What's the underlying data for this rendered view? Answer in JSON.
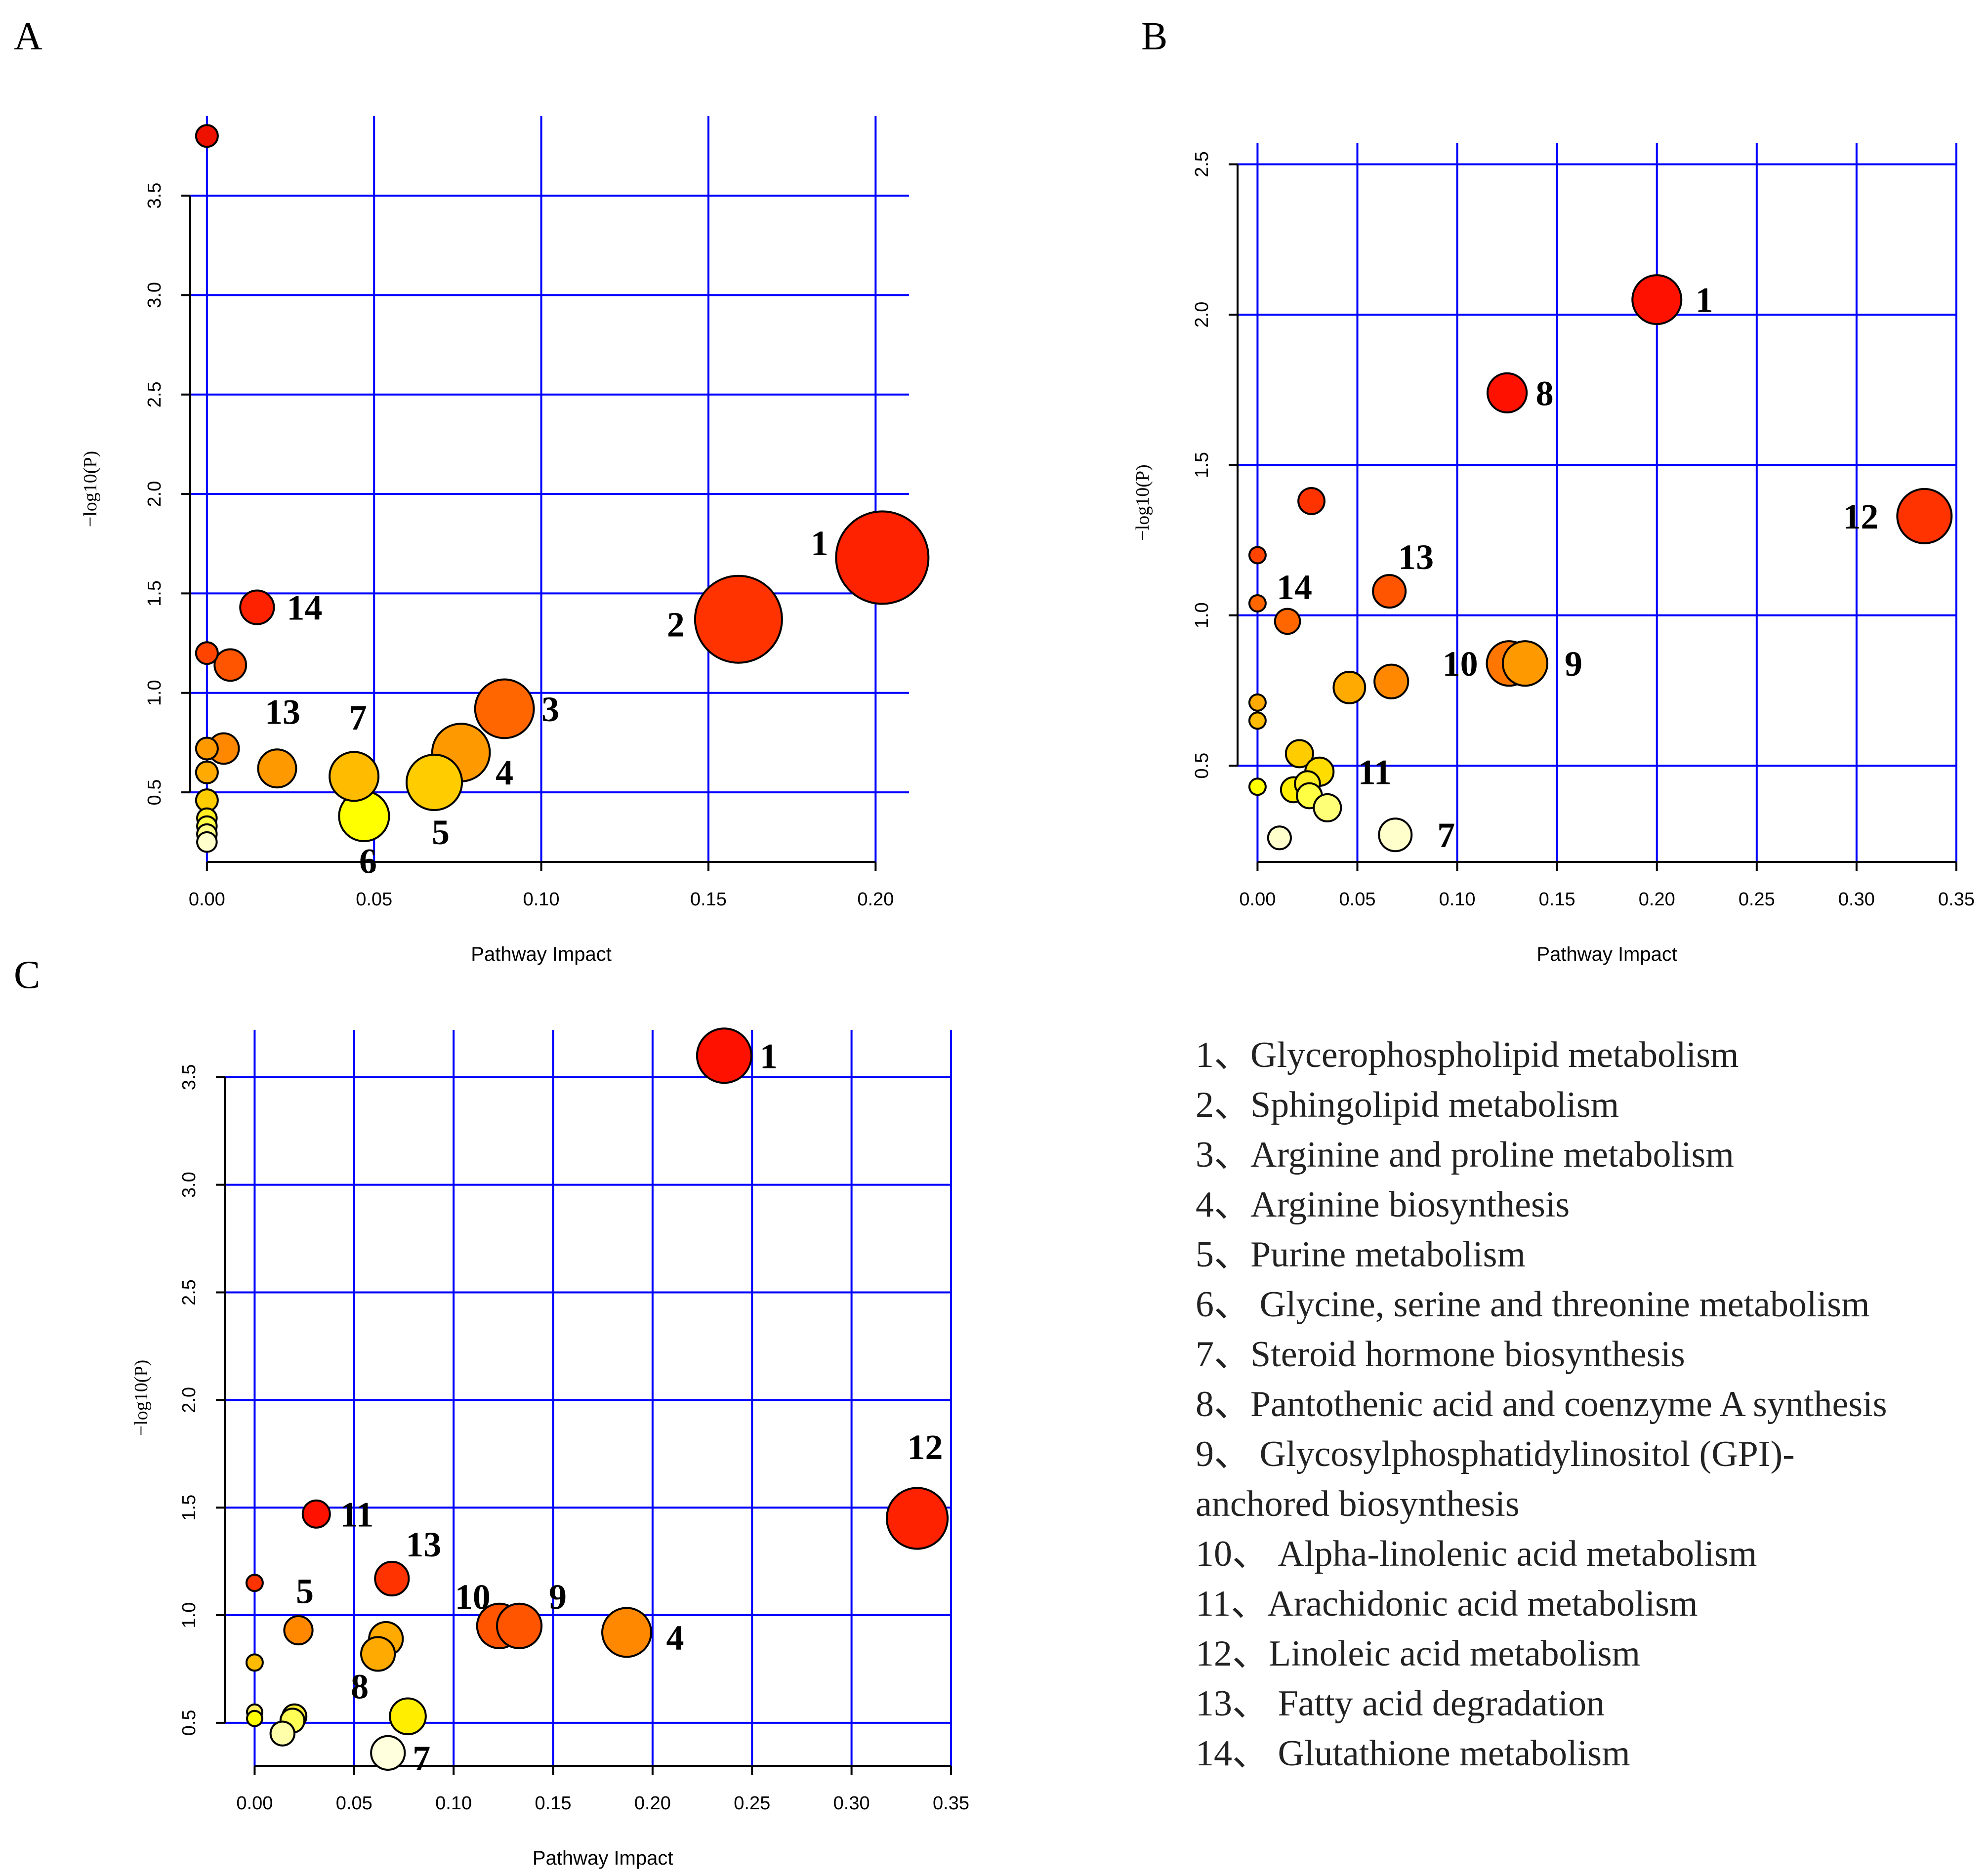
{
  "panel_letters": [
    "A",
    "B",
    "C"
  ],
  "legend": [
    "1、Glycerophospholipid metabolism",
    "2、Sphingolipid metabolism",
    "3、Arginine and proline metabolism",
    "4、Arginine biosynthesis",
    "5、Purine metabolism",
    "6、 Glycine, serine and threonine metabolism",
    "7、Steroid hormone biosynthesis",
    "8、Pantothenic acid and coenzyme A synthesis",
    "9、 Glycosylphosphatidylinositol (GPI)-",
    "anchored biosynthesis",
    "10、 Alpha-linolenic acid metabolism",
    "11、Arachidonic acid metabolism",
    "12、Linoleic acid metabolism",
    "13、 Fatty acid degradation",
    "14、 Glutathione metabolism"
  ],
  "chart_data": [
    {
      "panel": "A",
      "type": "scatter",
      "xlabel": "Pathway Impact",
      "ylabel": "−log10(P)",
      "xlim": [
        -0.005,
        0.21
      ],
      "ylim": [
        0.15,
        3.9
      ],
      "xticks": [
        0.0,
        0.05,
        0.1,
        0.15,
        0.2
      ],
      "xtick_labels": [
        "0.00",
        "0.05",
        "0.10",
        "0.15",
        "0.20"
      ],
      "yticks": [
        0.5,
        1.0,
        1.5,
        2.0,
        2.5,
        3.0,
        3.5
      ],
      "ytick_labels": [
        "0.5",
        "1.0",
        "1.5",
        "2.0",
        "2.5",
        "3.0",
        "3.5"
      ],
      "points": [
        {
          "x": 0.0,
          "y": 3.8,
          "r": 0.4,
          "color": "#ee1100"
        },
        {
          "x": 0.202,
          "y": 1.68,
          "r": 1.7,
          "color": "#ff2200",
          "label": "1"
        },
        {
          "x": 0.159,
          "y": 1.37,
          "r": 1.6,
          "color": "#ff3300",
          "label": "2"
        },
        {
          "x": 0.089,
          "y": 0.92,
          "r": 1.08,
          "color": "#ff6600",
          "label": "3"
        },
        {
          "x": 0.076,
          "y": 0.7,
          "r": 1.06,
          "color": "#ff9900",
          "label": "4"
        },
        {
          "x": 0.068,
          "y": 0.55,
          "r": 1.02,
          "color": "#ffcc00",
          "label": "5"
        },
        {
          "x": 0.047,
          "y": 0.38,
          "r": 0.92,
          "color": "#ffff00",
          "label": "6"
        },
        {
          "x": 0.044,
          "y": 0.58,
          "r": 0.9,
          "color": "#ffbb00",
          "label": "7"
        },
        {
          "x": 0.021,
          "y": 0.62,
          "r": 0.7,
          "color": "#ff9900",
          "label": "13"
        },
        {
          "x": 0.015,
          "y": 1.43,
          "r": 0.62,
          "color": "#ff2200",
          "label": "14"
        },
        {
          "x": 0.007,
          "y": 1.14,
          "r": 0.58,
          "color": "#ff5500"
        },
        {
          "x": 0.005,
          "y": 0.72,
          "r": 0.56,
          "color": "#ff8800"
        },
        {
          "x": 0.0,
          "y": 1.2,
          "r": 0.4,
          "color": "#ff4400"
        },
        {
          "x": 0.0,
          "y": 0.72,
          "r": 0.4,
          "color": "#ff9900"
        },
        {
          "x": 0.0,
          "y": 0.6,
          "r": 0.4,
          "color": "#ffaa00"
        },
        {
          "x": 0.0,
          "y": 0.46,
          "r": 0.4,
          "color": "#ffcc00"
        },
        {
          "x": 0.0,
          "y": 0.37,
          "r": 0.36,
          "color": "#ffee22"
        },
        {
          "x": 0.0,
          "y": 0.33,
          "r": 0.36,
          "color": "#ffff44"
        },
        {
          "x": 0.0,
          "y": 0.29,
          "r": 0.36,
          "color": "#ffff88"
        },
        {
          "x": 0.0,
          "y": 0.25,
          "r": 0.36,
          "color": "#ffffcc"
        }
      ]
    },
    {
      "panel": "B",
      "type": "scatter",
      "xlabel": "Pathway Impact",
      "ylabel": "−log10(P)",
      "xlim": [
        -0.01,
        0.35
      ],
      "ylim": [
        0.18,
        2.57
      ],
      "xticks": [
        0.0,
        0.05,
        0.1,
        0.15,
        0.2,
        0.25,
        0.3,
        0.35
      ],
      "xtick_labels": [
        "0.00",
        "0.05",
        "0.10",
        "0.15",
        "0.20",
        "0.25",
        "0.30",
        "0.35"
      ],
      "yticks": [
        0.5,
        1.0,
        1.5,
        2.0,
        2.5
      ],
      "ytick_labels": [
        "0.5",
        "1.0",
        "1.5",
        "2.0",
        "2.5"
      ],
      "points": [
        {
          "x": 0.2,
          "y": 2.05,
          "r": 0.9,
          "color": "#ff1100",
          "label": "1"
        },
        {
          "x": 0.125,
          "y": 1.74,
          "r": 0.72,
          "color": "#ff1100",
          "label": "8"
        },
        {
          "x": 0.334,
          "y": 1.33,
          "r": 1.0,
          "color": "#ff3300",
          "label": "12"
        },
        {
          "x": 0.027,
          "y": 1.38,
          "r": 0.48,
          "color": "#ff3300"
        },
        {
          "x": 0.066,
          "y": 1.08,
          "r": 0.6,
          "color": "#ff5500",
          "label": "13"
        },
        {
          "x": 0.015,
          "y": 0.98,
          "r": 0.46,
          "color": "#ff6600",
          "label": "14"
        },
        {
          "x": 0.0,
          "y": 1.2,
          "r": 0.3,
          "color": "#ff4400"
        },
        {
          "x": 0.0,
          "y": 1.04,
          "r": 0.3,
          "color": "#ff6600"
        },
        {
          "x": 0.126,
          "y": 0.84,
          "r": 0.82,
          "color": "#ff7700",
          "label": "10"
        },
        {
          "x": 0.134,
          "y": 0.84,
          "r": 0.82,
          "color": "#ff9900",
          "label": "9"
        },
        {
          "x": 0.067,
          "y": 0.78,
          "r": 0.62,
          "color": "#ff8800"
        },
        {
          "x": 0.046,
          "y": 0.76,
          "r": 0.58,
          "color": "#ffaa00"
        },
        {
          "x": 0.0,
          "y": 0.71,
          "r": 0.3,
          "color": "#ffaa00"
        },
        {
          "x": 0.0,
          "y": 0.65,
          "r": 0.3,
          "color": "#ffbb00"
        },
        {
          "x": 0.021,
          "y": 0.54,
          "r": 0.5,
          "color": "#ffcc00"
        },
        {
          "x": 0.031,
          "y": 0.48,
          "r": 0.52,
          "color": "#ffdd00",
          "label": "11"
        },
        {
          "x": 0.018,
          "y": 0.42,
          "r": 0.46,
          "color": "#ffee00"
        },
        {
          "x": 0.025,
          "y": 0.44,
          "r": 0.46,
          "color": "#ffee22"
        },
        {
          "x": 0.026,
          "y": 0.4,
          "r": 0.46,
          "color": "#ffff44"
        },
        {
          "x": 0.035,
          "y": 0.36,
          "r": 0.5,
          "color": "#ffff77"
        },
        {
          "x": 0.0,
          "y": 0.43,
          "r": 0.3,
          "color": "#ffff00"
        },
        {
          "x": 0.011,
          "y": 0.26,
          "r": 0.42,
          "color": "#ffffcc"
        },
        {
          "x": 0.069,
          "y": 0.27,
          "r": 0.6,
          "color": "#ffffcc",
          "label": "7"
        }
      ]
    },
    {
      "panel": "C",
      "type": "scatter",
      "xlabel": "Pathway Impact",
      "ylabel": "−log10(P)",
      "xlim": [
        -0.015,
        0.35
      ],
      "ylim": [
        0.3,
        3.72
      ],
      "xticks": [
        0.0,
        0.05,
        0.1,
        0.15,
        0.2,
        0.25,
        0.3,
        0.35
      ],
      "xtick_labels": [
        "0.00",
        "0.05",
        "0.10",
        "0.15",
        "0.20",
        "0.25",
        "0.30",
        "0.35"
      ],
      "yticks": [
        0.5,
        1.0,
        1.5,
        2.0,
        2.5,
        3.0,
        3.5
      ],
      "ytick_labels": [
        "0.5",
        "1.0",
        "1.5",
        "2.0",
        "2.5",
        "3.0",
        "3.5"
      ],
      "points": [
        {
          "x": 0.236,
          "y": 3.6,
          "r": 1.0,
          "color": "#ff1100",
          "label": "1"
        },
        {
          "x": 0.333,
          "y": 1.45,
          "r": 1.12,
          "color": "#ff2200",
          "label": "12"
        },
        {
          "x": 0.031,
          "y": 1.47,
          "r": 0.5,
          "color": "#ff1100",
          "label": "11"
        },
        {
          "x": 0.069,
          "y": 1.17,
          "r": 0.62,
          "color": "#ff3300",
          "label": "13"
        },
        {
          "x": 0.0,
          "y": 1.15,
          "r": 0.3,
          "color": "#ff3300"
        },
        {
          "x": 0.123,
          "y": 0.95,
          "r": 0.82,
          "color": "#ff5500",
          "label": "10"
        },
        {
          "x": 0.133,
          "y": 0.95,
          "r": 0.82,
          "color": "#ff5500",
          "label": "9"
        },
        {
          "x": 0.187,
          "y": 0.92,
          "r": 0.9,
          "color": "#ff8800",
          "label": "4"
        },
        {
          "x": 0.022,
          "y": 0.93,
          "r": 0.52,
          "color": "#ff8800",
          "label": "5"
        },
        {
          "x": 0.066,
          "y": 0.89,
          "r": 0.62,
          "color": "#ffaa00"
        },
        {
          "x": 0.062,
          "y": 0.82,
          "r": 0.62,
          "color": "#ffaa00",
          "label": "8"
        },
        {
          "x": 0.0,
          "y": 0.78,
          "r": 0.3,
          "color": "#ffbb00"
        },
        {
          "x": 0.077,
          "y": 0.53,
          "r": 0.66,
          "color": "#ffee00"
        },
        {
          "x": 0.02,
          "y": 0.53,
          "r": 0.44,
          "color": "#ffee33"
        },
        {
          "x": 0.019,
          "y": 0.51,
          "r": 0.44,
          "color": "#ffff55"
        },
        {
          "x": 0.0,
          "y": 0.55,
          "r": 0.28,
          "color": "#ffee66"
        },
        {
          "x": 0.0,
          "y": 0.52,
          "r": 0.28,
          "color": "#ffff00"
        },
        {
          "x": 0.014,
          "y": 0.45,
          "r": 0.44,
          "color": "#ffffaa"
        },
        {
          "x": 0.067,
          "y": 0.36,
          "r": 0.62,
          "color": "#ffffdd",
          "label": "7"
        }
      ]
    }
  ]
}
